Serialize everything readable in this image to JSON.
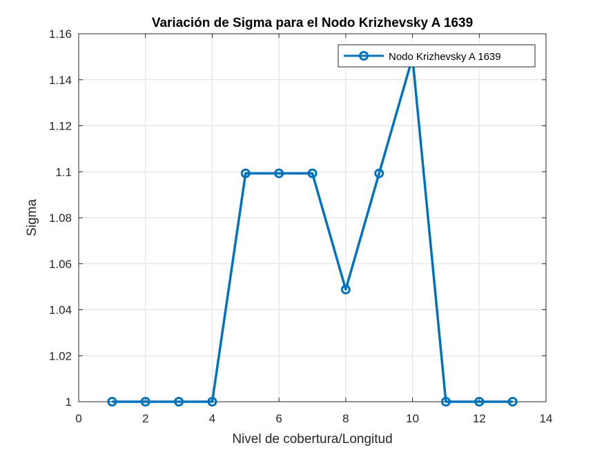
{
  "chart_data": {
    "type": "line",
    "title": "Variación de Sigma para el Nodo Krizhevsky A 1639",
    "xlabel": "Nivel de cobertura/Longitud",
    "ylabel": "Sigma",
    "xlim": [
      0,
      14
    ],
    "ylim": [
      1,
      1.16
    ],
    "xticks": [
      0,
      2,
      4,
      6,
      8,
      10,
      12,
      14
    ],
    "yticks": [
      1,
      1.02,
      1.04,
      1.06,
      1.08,
      1.1,
      1.12,
      1.14,
      1.16
    ],
    "xtick_labels": [
      "0",
      "2",
      "4",
      "6",
      "8",
      "10",
      "12",
      "14"
    ],
    "ytick_labels": [
      "1",
      "1.02",
      "1.04",
      "1.06",
      "1.08",
      "1.1",
      "1.12",
      "1.14",
      "1.16"
    ],
    "grid": true,
    "legend_position": "top-right",
    "series": [
      {
        "name": "Nodo Krizhevsky A 1639",
        "color": "#0072BD",
        "marker": "circle",
        "x": [
          1,
          2,
          3,
          4,
          5,
          6,
          7,
          8,
          9,
          10,
          11,
          12,
          13
        ],
        "y": [
          1,
          1,
          1,
          1,
          1.0993,
          1.0993,
          1.0993,
          1.0488,
          1.0993,
          1.1497,
          1,
          1,
          1
        ]
      }
    ]
  }
}
